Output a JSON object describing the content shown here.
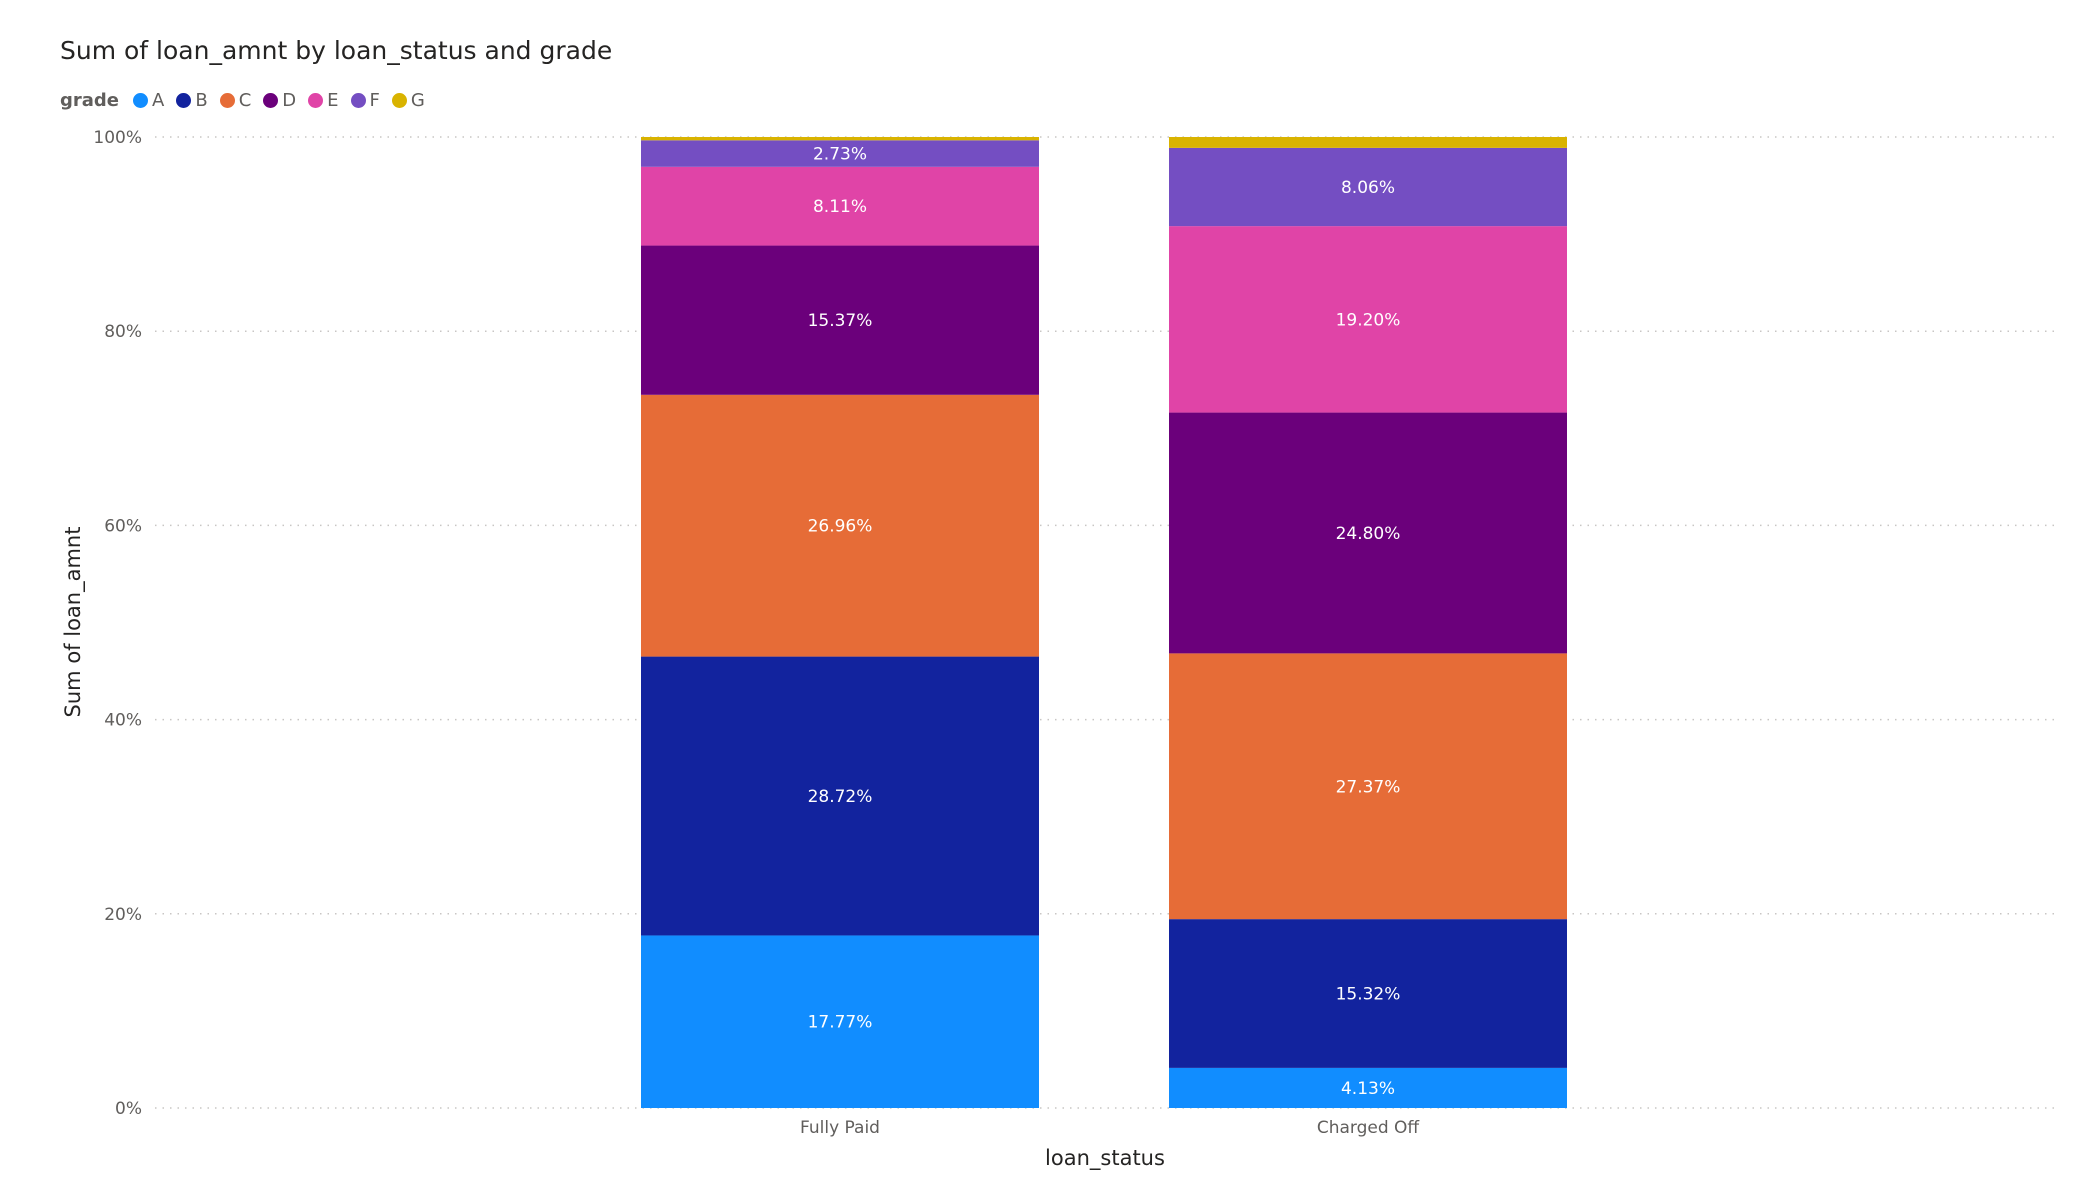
{
  "chart_data": {
    "type": "bar",
    "stacked": "100%",
    "title": "Sum of loan_amnt by loan_status and grade",
    "xlabel": "loan_status",
    "ylabel": "Sum of loan_amnt",
    "ylim": [
      0,
      100
    ],
    "y_ticks": [
      "0%",
      "20%",
      "40%",
      "60%",
      "80%",
      "100%"
    ],
    "grid": "horizontal dotted",
    "legend_title": "grade",
    "legend_position": "top-left",
    "categories": [
      "Fully Paid",
      "Charged Off"
    ],
    "series": [
      {
        "name": "A",
        "color": "#118DFF",
        "values": [
          17.77,
          4.13
        ],
        "labels": [
          "17.77%",
          "4.13%"
        ]
      },
      {
        "name": "B",
        "color": "#12239E",
        "values": [
          28.72,
          15.32
        ],
        "labels": [
          "28.72%",
          "15.32%"
        ]
      },
      {
        "name": "C",
        "color": "#E66C37",
        "values": [
          26.96,
          27.37
        ],
        "labels": [
          "26.96%",
          "27.37%"
        ]
      },
      {
        "name": "D",
        "color": "#6B007B",
        "values": [
          15.37,
          24.8
        ],
        "labels": [
          "15.37%",
          "24.80%"
        ]
      },
      {
        "name": "E",
        "color": "#E044A7",
        "values": [
          8.11,
          19.2
        ],
        "labels": [
          "8.11%",
          "19.20%"
        ]
      },
      {
        "name": "F",
        "color": "#744EC2",
        "values": [
          2.73,
          8.06
        ],
        "labels": [
          "2.73%",
          "8.06%"
        ]
      },
      {
        "name": "G",
        "color": "#D9B300",
        "values": [
          0.34,
          1.12
        ],
        "labels": [
          "",
          ""
        ]
      }
    ]
  }
}
